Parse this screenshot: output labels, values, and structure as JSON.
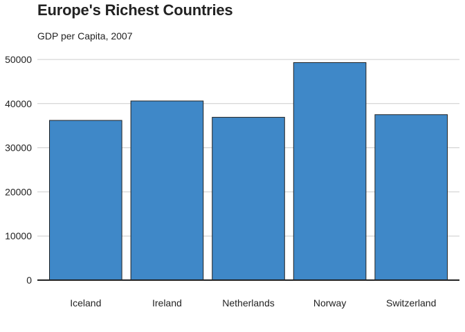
{
  "colors": {
    "bar_fill": "#3f88c8",
    "bar_stroke": "#222222",
    "grid": "#cccccc",
    "axis": "#222222"
  },
  "chart_data": {
    "type": "bar",
    "title": "Europe's Richest Countries",
    "subtitle": "GDP per Capita, 2007",
    "xlabel": "",
    "ylabel": "",
    "categories": [
      "Iceland",
      "Ireland",
      "Netherlands",
      "Norway",
      "Switzerland"
    ],
    "values": [
      36200,
      40600,
      36900,
      49300,
      37500
    ],
    "ylim": [
      0,
      50000
    ],
    "yticks": [
      0,
      10000,
      20000,
      30000,
      40000,
      50000
    ],
    "ytick_labels": [
      "0",
      "10000",
      "20000",
      "30000",
      "40000",
      "50000"
    ],
    "grid": true,
    "legend": "none"
  }
}
